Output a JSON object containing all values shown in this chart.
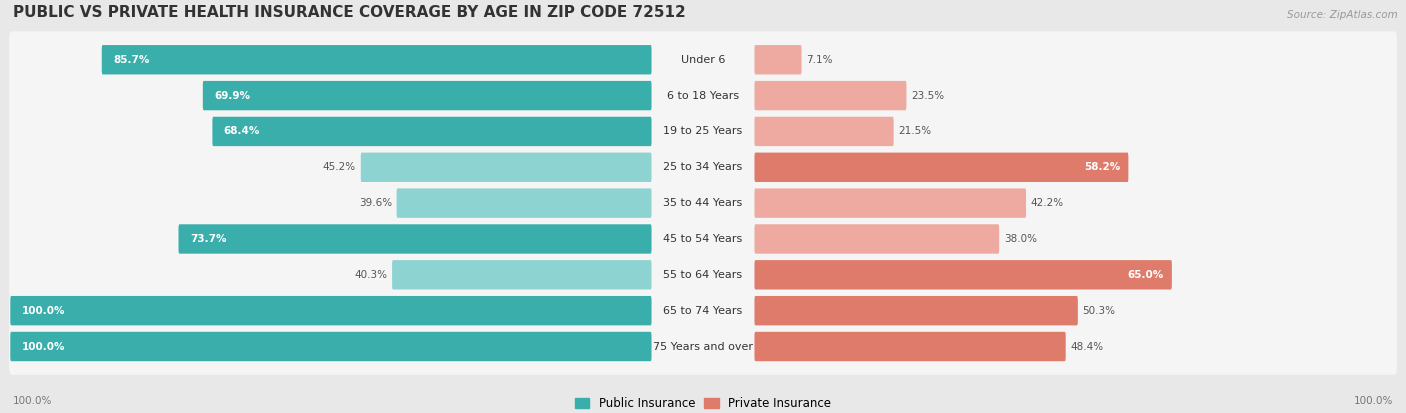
{
  "title": "PUBLIC VS PRIVATE HEALTH INSURANCE COVERAGE BY AGE IN ZIP CODE 72512",
  "source": "Source: ZipAtlas.com",
  "categories": [
    "Under 6",
    "6 to 18 Years",
    "19 to 25 Years",
    "25 to 34 Years",
    "35 to 44 Years",
    "45 to 54 Years",
    "55 to 64 Years",
    "65 to 74 Years",
    "75 Years and over"
  ],
  "public_values": [
    85.7,
    69.9,
    68.4,
    45.2,
    39.6,
    73.7,
    40.3,
    100.0,
    100.0
  ],
  "private_values": [
    7.1,
    23.5,
    21.5,
    58.2,
    42.2,
    38.0,
    65.0,
    50.3,
    48.4
  ],
  "public_color_dark": "#3aaeab",
  "public_color_light": "#8dd3d1",
  "private_color_dark": "#df7b6b",
  "private_color_light": "#eeaaa0",
  "bg_color": "#e8e8e8",
  "row_bg_color": "#f5f5f5",
  "title_fontsize": 11,
  "cat_fontsize": 8.0,
  "value_fontsize": 7.5,
  "legend_fontsize": 8.5,
  "source_fontsize": 7.5
}
